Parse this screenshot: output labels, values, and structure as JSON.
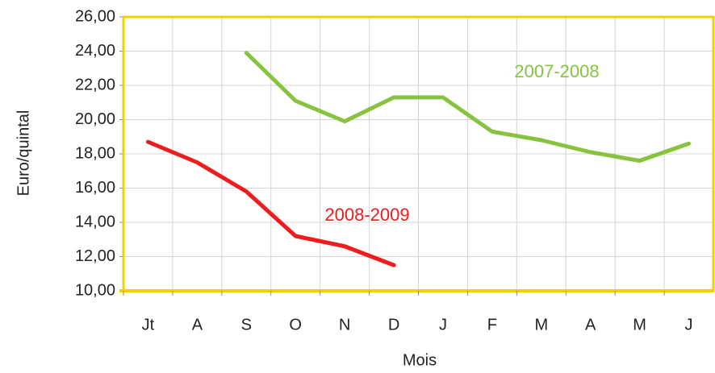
{
  "chart_data": {
    "type": "line",
    "y_label": "Euro/quintal",
    "x_label": "Mois",
    "categories": [
      "Jt",
      "A",
      "S",
      "O",
      "N",
      "D",
      "J",
      "F",
      "M",
      "A",
      "M",
      "J"
    ],
    "series": [
      {
        "name": "2008-2009",
        "color": "#ee1c1c",
        "values": [
          18.7,
          17.5,
          15.8,
          13.2,
          12.6,
          11.5,
          null,
          null,
          null,
          null,
          null,
          null
        ]
      },
      {
        "name": "2007-2008",
        "color": "#86c440",
        "values": [
          null,
          null,
          23.9,
          21.1,
          19.9,
          21.3,
          21.3,
          19.3,
          18.8,
          18.1,
          17.6,
          18.6
        ]
      }
    ],
    "ylim": [
      10,
      26
    ],
    "yticks": [
      {
        "value": 10,
        "label": "10,00"
      },
      {
        "value": 12,
        "label": "12,00"
      },
      {
        "value": 14,
        "label": "14,00"
      },
      {
        "value": 16,
        "label": "16,00"
      },
      {
        "value": 18,
        "label": "18,00"
      },
      {
        "value": 20,
        "label": "20,00"
      },
      {
        "value": 22,
        "label": "22,00"
      },
      {
        "value": 24,
        "label": "24,00"
      },
      {
        "value": 26,
        "label": "26,00"
      }
    ],
    "grid": true
  }
}
